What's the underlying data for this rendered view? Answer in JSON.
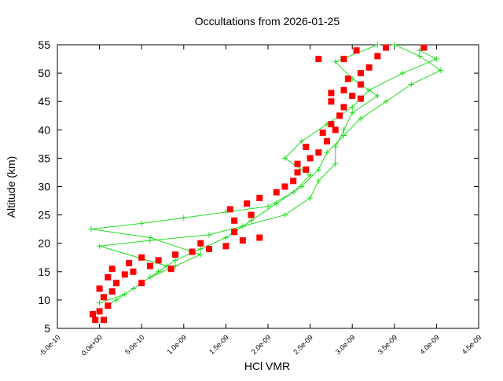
{
  "chart_data": {
    "type": "scatter",
    "title": "Occultations from 2026-01-25",
    "xlabel": "HCl VMR",
    "ylabel": "Altitude (km)",
    "xlim": [
      -5e-10,
      4.5e-09
    ],
    "ylim": [
      5,
      55
    ],
    "xticks": [
      {
        "value": -5e-10,
        "label": "-5.0e-10"
      },
      {
        "value": 0,
        "label": "0.0e+00"
      },
      {
        "value": 5e-10,
        "label": "5.0e-10"
      },
      {
        "value": 1e-09,
        "label": "1.0e-09"
      },
      {
        "value": 1.5e-09,
        "label": "1.5e-09"
      },
      {
        "value": 2e-09,
        "label": "2.0e-09"
      },
      {
        "value": 2.5e-09,
        "label": "2.5e-09"
      },
      {
        "value": 3e-09,
        "label": "3.0e-09"
      },
      {
        "value": 3.5e-09,
        "label": "3.5e-09"
      },
      {
        "value": 4e-09,
        "label": "4.0e-09"
      },
      {
        "value": 4.5e-09,
        "label": "4.5e-09"
      }
    ],
    "yticks": [
      5,
      10,
      15,
      20,
      25,
      30,
      35,
      40,
      45,
      50,
      55
    ],
    "grid": false,
    "series": [
      {
        "color": "#22dd22",
        "mode": "lines+markers",
        "x": [
          0,
          3e-10,
          5e-10,
          7e-10,
          9e-10,
          1.2e-09,
          1.5e-09,
          1.8e-09,
          2.1e-09,
          2.4e-09,
          2.6e-09,
          2.7e-09,
          2.9e-09,
          3.1e-09,
          3.4e-09,
          3.7e-09,
          4.05e-09,
          3.8e-09,
          3.5e-09,
          null,
          1e-10,
          4e-10,
          6e-10,
          9e-10,
          1.2e-09,
          6e-10,
          -1e-10,
          5e-10,
          1e-09,
          1.5e-09,
          2e-09,
          2.3e-09,
          2.5e-09,
          2.2e-09,
          2.4e-09,
          2.7e-09,
          3e-09,
          3.2e-09,
          3.6e-09,
          4e-09,
          3.8e-09,
          null,
          2e-10,
          5e-10,
          8e-10,
          0,
          6e-10,
          1.3e-09,
          1.7e-09,
          2.2e-09,
          2.5e-09,
          2.6e-09,
          2.8e-09,
          2.8e-09,
          2.9e-09,
          3e-09,
          3.3e-09,
          3e-09,
          2.8e-09,
          3.3e-09
        ],
        "y": [
          9.5,
          11,
          13,
          15,
          17,
          19,
          21,
          24,
          27,
          30,
          33,
          36,
          39,
          42,
          45,
          48,
          50.5,
          53,
          55,
          null,
          9,
          12,
          14,
          16,
          18,
          21,
          22.5,
          23.5,
          24.5,
          25.5,
          26.5,
          29,
          32,
          35,
          38,
          41,
          44,
          47,
          50,
          52.5,
          54,
          null,
          10,
          13,
          16,
          19.5,
          20.5,
          21.5,
          23,
          25,
          28,
          31,
          34,
          37,
          40,
          43,
          46,
          49,
          52,
          55
        ]
      },
      {
        "color": "#ff0000",
        "mode": "markers",
        "x": [
          -5e-11,
          5e-11,
          0,
          -8e-11,
          1e-10,
          5e-11,
          1.5e-10,
          0,
          2e-10,
          1e-10,
          3e-10,
          1.5e-10,
          4e-10,
          5e-10,
          3.5e-10,
          6e-10,
          7e-10,
          8.5e-10,
          5e-10,
          9e-10,
          1.1e-09,
          1.3e-09,
          1.5e-09,
          1.2e-09,
          1.7e-09,
          1.6e-09,
          1.9e-09,
          1.6e-09,
          1.8e-09,
          1.55e-09,
          1.75e-09,
          1.9e-09,
          2.1e-09,
          2.2e-09,
          2.3e-09,
          2.35e-09,
          2.45e-09,
          2.35e-09,
          2.5e-09,
          2.6e-09,
          2.45e-09,
          2.7e-09,
          2.65e-09,
          2.8e-09,
          2.75e-09,
          2.85e-09,
          2.9e-09,
          2.75e-09,
          3e-09,
          2.9e-09,
          3.1e-09,
          2.95e-09,
          3.1e-09,
          3.2e-09,
          2.9e-09,
          3.3e-09,
          3.05e-09,
          3.4e-09,
          2.6e-09,
          3.85e-09,
          2.75e-09,
          3.1e-09
        ],
        "y": [
          6.5,
          6.5,
          8,
          7.5,
          9,
          10.5,
          11.5,
          12,
          13,
          14,
          14.5,
          15.5,
          15,
          13,
          16.5,
          16,
          17,
          15.5,
          17.5,
          18,
          18.5,
          19,
          19.5,
          20,
          20.5,
          22,
          21,
          24,
          25,
          26,
          27,
          28,
          29,
          30,
          31,
          32.5,
          33,
          34,
          35,
          36,
          37,
          38,
          39.5,
          40,
          41,
          42.5,
          44,
          45,
          46,
          47,
          48,
          49,
          50,
          51,
          52.5,
          53,
          54,
          54.5,
          52.5,
          54.5,
          46.5,
          45.5
        ]
      }
    ]
  }
}
